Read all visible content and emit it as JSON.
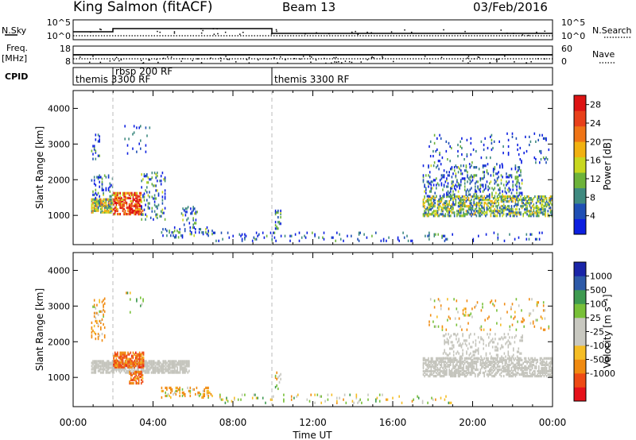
{
  "header": {
    "station": "King Salmon (fitACF)",
    "beam": "Beam 13",
    "date": "03/Feb/2016"
  },
  "panels": {
    "nsky_label": "N.Sky",
    "nsky_ticks": [
      "10^5",
      "10^0"
    ],
    "nsearch_label": "N.Search",
    "nsearch_ticks": [
      "10^5",
      "10^0"
    ],
    "freq_label": "Freq.",
    "freq_unit": "[MHz]",
    "freq_ticks": [
      "18",
      "8"
    ],
    "nave_label": "Nave",
    "nave_ticks": [
      "60",
      "0"
    ],
    "cpid_label": "CPID",
    "cpid_segments": [
      "themis 3300 RF",
      "rbsp 200 RF",
      "themis 3300 RF"
    ]
  },
  "colors": {
    "power": [
      "#0c1fe0",
      "#1f4fb5",
      "#3f8a80",
      "#6db33a",
      "#c8d71e",
      "#f1b110",
      "#ef7416",
      "#e8401a",
      "#dd1313"
    ],
    "velocity": [
      "#e6121a",
      "#ee4a14",
      "#f08a10",
      "#f5bd25",
      "#c8c8c0",
      "#c8c8c0",
      "#78c038",
      "#3e9a50",
      "#2d5aa8",
      "#1a25a8"
    ],
    "ground_scatter": "#c4c4bc"
  },
  "chart_data": [
    {
      "type": "heatmap",
      "title": "",
      "xlabel": "Time UT",
      "ylabel": "Slant Range [km]",
      "x_ticks": [
        "00:00",
        "04:00",
        "08:00",
        "12:00",
        "16:00",
        "20:00",
        "00:00"
      ],
      "y_ticks": [
        "1000",
        "2000",
        "3000",
        "4000"
      ],
      "xlim_hours": [
        0,
        24
      ],
      "ylim_km": [
        180,
        4500
      ],
      "colorbar": {
        "label": "Power [dB]",
        "ticks": [
          "4",
          "8",
          "12",
          "16",
          "20",
          "24",
          "28"
        ],
        "range": [
          0,
          30
        ]
      },
      "grid": false,
      "scatter_regions": [
        {
          "t": [
            0.9,
            2.0
          ],
          "r": [
            1050,
            1450
          ],
          "level": 0.45,
          "density": 0.8
        },
        {
          "t": [
            0.9,
            2.0
          ],
          "r": [
            1450,
            2100
          ],
          "level": 0.2,
          "density": 0.22
        },
        {
          "t": [
            0.9,
            1.4
          ],
          "r": [
            2500,
            3250
          ],
          "level": 0.15,
          "density": 0.12
        },
        {
          "t": [
            2.0,
            3.4
          ],
          "r": [
            1000,
            1600
          ],
          "level": 0.8,
          "density": 0.65
        },
        {
          "t": [
            2.8,
            3.5
          ],
          "r": [
            1000,
            1250
          ],
          "level": 0.9,
          "density": 0.55
        },
        {
          "t": [
            3.4,
            4.6
          ],
          "r": [
            850,
            2200
          ],
          "level": 0.25,
          "density": 0.18
        },
        {
          "t": [
            2.5,
            3.8
          ],
          "r": [
            2700,
            3500
          ],
          "level": 0.1,
          "density": 0.06
        },
        {
          "t": [
            5.4,
            6.2
          ],
          "r": [
            700,
            1200
          ],
          "level": 0.25,
          "density": 0.2
        },
        {
          "t": [
            4.4,
            7.0
          ],
          "r": [
            350,
            650
          ],
          "level": 0.2,
          "density": 0.18
        },
        {
          "t": [
            7.0,
            19.0
          ],
          "r": [
            250,
            500
          ],
          "level": 0.12,
          "density": 0.08
        },
        {
          "t": [
            10.1,
            10.4
          ],
          "r": [
            550,
            1150
          ],
          "level": 0.2,
          "density": 0.35
        },
        {
          "t": [
            17.5,
            24.0
          ],
          "r": [
            950,
            1500
          ],
          "level": 0.38,
          "density": 0.55
        },
        {
          "t": [
            17.5,
            22.5
          ],
          "r": [
            1500,
            2400
          ],
          "level": 0.2,
          "density": 0.2
        },
        {
          "t": [
            17.8,
            23.8
          ],
          "r": [
            2400,
            3300
          ],
          "level": 0.1,
          "density": 0.06
        },
        {
          "t": [
            20.0,
            23.8
          ],
          "r": [
            250,
            500
          ],
          "level": 0.15,
          "density": 0.06
        }
      ]
    },
    {
      "type": "heatmap",
      "title": "",
      "xlabel": "Time UT",
      "ylabel": "Slant Range [km]",
      "x_ticks": [
        "00:00",
        "04:00",
        "08:00",
        "12:00",
        "16:00",
        "20:00",
        "00:00"
      ],
      "y_ticks": [
        "1000",
        "2000",
        "3000",
        "4000"
      ],
      "xlim_hours": [
        0,
        24
      ],
      "ylim_km": [
        180,
        4500
      ],
      "colorbar": {
        "label": "Velocity [m s⁻¹]",
        "ticks": [
          "1000",
          "500",
          "100",
          "25",
          "-25",
          "-100",
          "-500",
          "-1000"
        ]
      },
      "grid": false,
      "ground_scatter_regions": [
        {
          "t": [
            0.9,
            5.8
          ],
          "r": [
            1100,
            1450
          ],
          "density": 0.7
        },
        {
          "t": [
            17.5,
            24.0
          ],
          "r": [
            1000,
            1500
          ],
          "density": 0.6
        },
        {
          "t": [
            18.5,
            22.5
          ],
          "r": [
            1500,
            2200
          ],
          "density": 0.2
        }
      ],
      "velocity_regions": [
        {
          "t": [
            2.0,
            3.5
          ],
          "r": [
            1250,
            1700
          ],
          "v": -550,
          "density": 0.7
        },
        {
          "t": [
            2.8,
            3.5
          ],
          "r": [
            800,
            1150
          ],
          "v": -450,
          "density": 0.5
        },
        {
          "t": [
            0.9,
            1.6
          ],
          "r": [
            2000,
            3200
          ],
          "v": -220,
          "density": 0.2
        },
        {
          "t": [
            2.5,
            3.6
          ],
          "r": [
            2700,
            3400
          ],
          "v": 60,
          "density": 0.06
        },
        {
          "t": [
            4.4,
            7.0
          ],
          "r": [
            400,
            700
          ],
          "v": -120,
          "density": 0.3
        },
        {
          "t": [
            7.0,
            19.0
          ],
          "r": [
            250,
            500
          ],
          "v": 0,
          "density": 0.08
        },
        {
          "t": [
            10.1,
            10.4
          ],
          "r": [
            600,
            1100
          ],
          "v": -30,
          "density": 0.25
        },
        {
          "t": [
            17.8,
            23.8
          ],
          "r": [
            2300,
            3200
          ],
          "v": -80,
          "density": 0.06
        }
      ]
    }
  ]
}
